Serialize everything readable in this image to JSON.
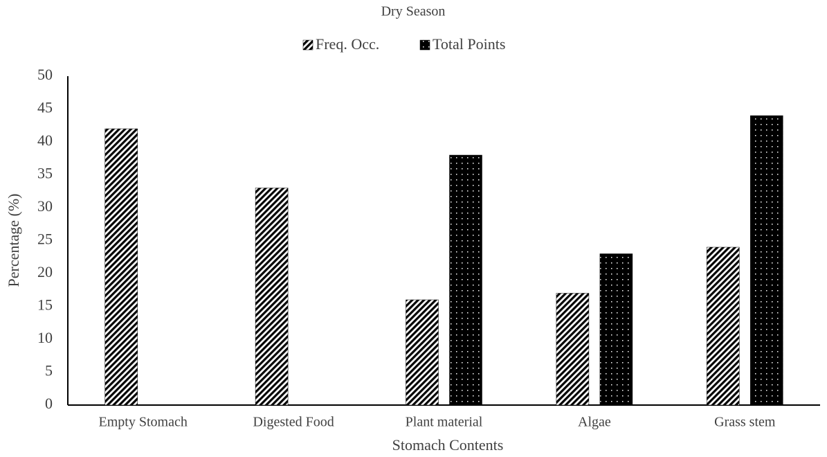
{
  "chart_data": {
    "type": "bar",
    "title": "Dry Season",
    "x_label": "Stomach Contents",
    "y_label": "Percentage (%)",
    "categories": [
      "Empty Stomach",
      "Digested Food",
      "Plant material",
      "Algae",
      "Grass stem"
    ],
    "series": [
      {
        "name": "Freq. Occ.",
        "color": "#000000",
        "values": [
          42,
          33,
          16,
          17,
          24
        ]
      },
      {
        "name": "Total Points",
        "color": "#000000",
        "values": [
          0,
          0,
          38,
          23,
          44
        ]
      }
    ],
    "ylim": [
      0,
      50
    ],
    "yticks": [
      0,
      5,
      10,
      15,
      20,
      25,
      30,
      35,
      40,
      45,
      50
    ],
    "grid": false,
    "legend": "top"
  }
}
